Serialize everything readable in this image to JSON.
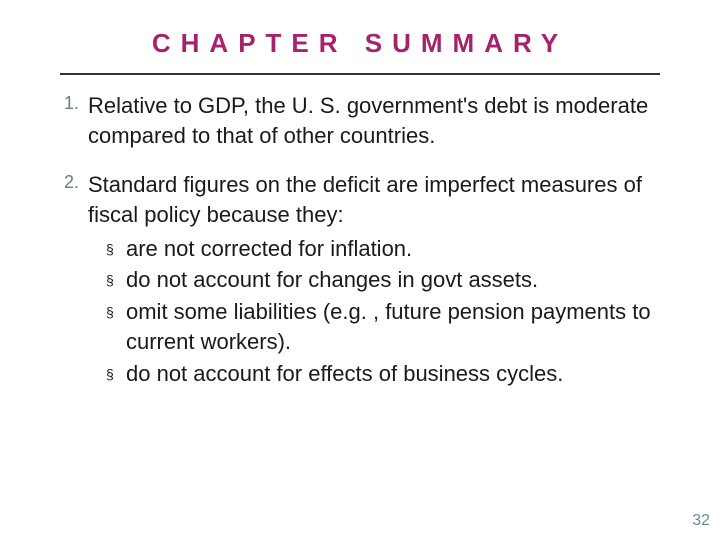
{
  "title": "CHAPTER SUMMARY",
  "title_color": "#a6226d",
  "rule_color": "#333333",
  "items": [
    {
      "num": "1.",
      "text": "Relative to GDP, the U. S. government's debt is moderate compared to that of other countries."
    },
    {
      "num": "2.",
      "text": "Standard figures on the deficit are imperfect measures of fiscal policy because they:",
      "sub": [
        "are not corrected for inflation.",
        "do not account for changes in govt assets.",
        "omit some liabilities (e.g. , future pension payments to current workers).",
        "do not account for effects of business cycles."
      ]
    }
  ],
  "bullet_char": "§",
  "page_number": "32",
  "text_color": "#1a1a1a",
  "num_color": "#6a7a8a",
  "pagenum_color": "#6a8a9a",
  "background_color": "#ffffff",
  "body_fontsize": 22,
  "title_fontsize": 26,
  "title_letter_spacing": 10
}
